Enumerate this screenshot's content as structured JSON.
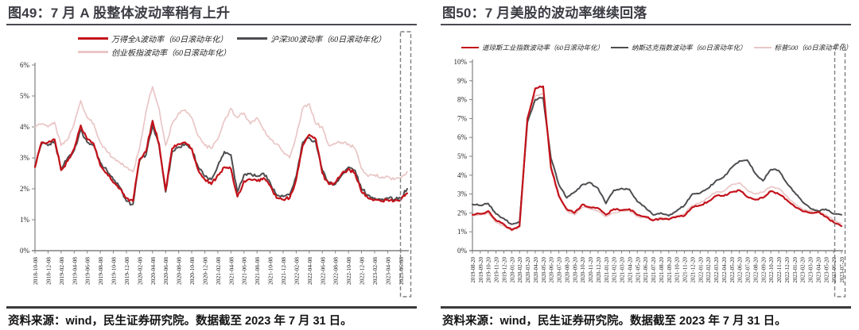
{
  "panels": [
    {
      "title": "图49：7 月 A 股整体波动率稍有上升",
      "source": "资料来源：wind，民生证券研究院。数据截至 2023 年 7 月 31 日。"
    },
    {
      "title": "图50：7 月美股的波动率继续回落",
      "source": "资料来源：wind，民生证券研究院。数据截至 2023 年 7 月 31 日。"
    }
  ],
  "colors": {
    "red": "#c3121a",
    "dark_gray": "#4e4e52",
    "pink": "#eac6c6",
    "axis": "#808080",
    "tick_text": "#1f1f1f",
    "title_text": "#3c3c44",
    "rule_dark": "#3a3a3a",
    "highlight_box": "#7f7f7f"
  },
  "chart_data": [
    {
      "type": "line",
      "title": "图49：7 月 A 股整体波动率稍有上升",
      "xlabel": "",
      "ylabel": "",
      "ylim": [
        0,
        6
      ],
      "grid": false,
      "legend_position": "top",
      "highlight_recent_period": true,
      "y_ticks": [
        "0%",
        "1%",
        "2%",
        "3%",
        "4%",
        "5%",
        "6%"
      ],
      "tick_step": 2,
      "x_tick_labels": [
        "2018-10-08",
        "2018-12-08",
        "2019-02-08",
        "2019-04-08",
        "2019-06-08",
        "2019-08-08",
        "2019-10-08",
        "2019-12-08",
        "2020-02-08",
        "2020-04-08",
        "2020-06-08",
        "2020-08-08",
        "2020-10-08",
        "2020-12-08",
        "2021-02-08",
        "2021-04-08",
        "2021-06-08",
        "2021-08-08",
        "2021-10-08",
        "2021-12-08",
        "2022-02-08",
        "2022-04-08",
        "2022-06-08",
        "2022-08-08",
        "2022-10-08",
        "2022-12-08",
        "2023-02-08",
        "2023-04-08",
        "2023-06-08"
      ],
      "series": [
        {
          "name": "万得全A波动率（60日滚动年化）",
          "color": "#c3121a",
          "values": [
            2.7,
            3.5,
            3.5,
            3.6,
            2.6,
            2.9,
            3.3,
            4.05,
            3.6,
            3.45,
            2.75,
            2.5,
            2.2,
            2.0,
            1.7,
            1.6,
            2.95,
            3.2,
            4.2,
            3.45,
            1.95,
            3.3,
            3.45,
            3.5,
            3.3,
            2.6,
            2.3,
            2.15,
            2.45,
            2.7,
            2.65,
            1.75,
            2.25,
            2.3,
            2.25,
            2.35,
            2.1,
            1.7,
            1.65,
            1.7,
            2.3,
            3.4,
            3.75,
            3.6,
            2.5,
            2.15,
            2.2,
            2.5,
            2.65,
            2.5,
            1.9,
            1.7,
            1.65,
            1.6,
            1.65,
            1.6,
            1.65,
            1.85
          ]
        },
        {
          "name": "沪深300波动率（60日滚动年化）",
          "color": "#4e4e52",
          "values": [
            2.75,
            3.45,
            3.4,
            3.55,
            2.65,
            3.0,
            3.25,
            3.9,
            3.5,
            3.4,
            2.85,
            2.6,
            2.3,
            2.05,
            1.6,
            1.5,
            2.9,
            3.1,
            4.05,
            3.4,
            1.9,
            3.2,
            3.35,
            3.45,
            3.3,
            2.7,
            2.4,
            2.3,
            2.75,
            3.2,
            3.1,
            1.9,
            2.45,
            2.5,
            2.4,
            2.5,
            2.2,
            1.8,
            1.75,
            1.8,
            2.4,
            3.5,
            3.65,
            3.5,
            2.6,
            2.2,
            2.15,
            2.45,
            2.7,
            2.6,
            2.0,
            1.8,
            1.7,
            1.65,
            1.7,
            1.65,
            1.7,
            2.0
          ]
        },
        {
          "name": "创业板指波动率（60日滚动年化）",
          "color": "#eac6c6",
          "values": [
            4.0,
            4.1,
            4.0,
            4.15,
            3.4,
            3.6,
            4.1,
            4.85,
            4.3,
            4.1,
            3.5,
            3.2,
            3.0,
            2.85,
            2.7,
            2.55,
            3.3,
            4.5,
            5.3,
            4.6,
            3.4,
            4.1,
            4.45,
            4.55,
            4.3,
            3.7,
            3.4,
            3.3,
            3.6,
            4.2,
            4.6,
            4.3,
            4.45,
            4.1,
            4.3,
            3.9,
            3.6,
            3.45,
            3.2,
            3.0,
            3.7,
            4.6,
            4.75,
            4.1,
            4.0,
            3.4,
            3.45,
            3.5,
            3.45,
            3.3,
            2.65,
            2.4,
            2.45,
            2.35,
            2.4,
            2.3,
            2.35,
            2.55
          ]
        }
      ]
    },
    {
      "type": "line",
      "title": "图50：7 月美股的波动率继续回落",
      "xlabel": "",
      "ylabel": "",
      "ylim": [
        0,
        10
      ],
      "grid": false,
      "legend_position": "top",
      "highlight_recent_period": true,
      "y_ticks": [
        "0%",
        "1%",
        "2%",
        "3%",
        "4%",
        "5%",
        "6%",
        "7%",
        "8%",
        "9%",
        "10%"
      ],
      "tick_step": 1,
      "x_tick_labels": [
        "2019-08-20",
        "2019-09-20",
        "2019-10-20",
        "2019-11-20",
        "2019-12-20",
        "2020-01-20",
        "2020-02-20",
        "2020-03-20",
        "2020-04-20",
        "2020-05-20",
        "2020-06-20",
        "2020-07-20",
        "2020-08-20",
        "2020-09-20",
        "2020-10-20",
        "2020-11-20",
        "2020-12-20",
        "2021-01-20",
        "2021-02-20",
        "2021-03-20",
        "2021-04-20",
        "2021-05-20",
        "2021-06-20",
        "2021-07-20",
        "2021-08-20",
        "2021-09-20",
        "2021-10-20",
        "2021-11-20",
        "2021-12-20",
        "2022-01-20",
        "2022-02-20",
        "2022-03-20",
        "2022-04-20",
        "2022-05-20",
        "2022-06-20",
        "2022-07-20",
        "2022-08-20",
        "2022-09-20",
        "2022-10-20",
        "2022-11-20",
        "2022-12-20",
        "2023-01-20",
        "2023-02-20",
        "2023-03-20",
        "2023-04-20",
        "2023-05-20",
        "2023-06-20",
        "2023-07-20"
      ],
      "series": [
        {
          "name": "道琼斯工业指数波动率（60日滚动年化）",
          "color": "#c3121a",
          "values": [
            1.9,
            1.95,
            2.1,
            1.6,
            1.4,
            1.1,
            1.3,
            7.0,
            8.6,
            8.7,
            4.4,
            2.9,
            2.2,
            2.0,
            2.45,
            2.3,
            2.25,
            1.9,
            2.2,
            2.15,
            2.2,
            1.9,
            1.8,
            1.6,
            1.7,
            1.65,
            1.8,
            1.85,
            2.3,
            2.4,
            2.6,
            2.9,
            2.9,
            3.1,
            3.2,
            2.85,
            2.7,
            2.8,
            3.15,
            3.0,
            2.7,
            2.35,
            2.1,
            2.0,
            2.05,
            1.8,
            1.5,
            1.3
          ]
        },
        {
          "name": "纳斯达克指数波动率（60日滚动年化）",
          "color": "#4e4e52",
          "values": [
            2.45,
            2.4,
            2.5,
            1.95,
            1.7,
            1.4,
            1.5,
            6.8,
            8.0,
            8.1,
            4.9,
            3.5,
            2.8,
            3.1,
            3.5,
            3.6,
            3.3,
            2.5,
            3.2,
            3.3,
            3.25,
            2.6,
            2.3,
            1.9,
            2.0,
            1.85,
            2.1,
            2.4,
            3.0,
            3.05,
            3.3,
            3.7,
            3.9,
            4.4,
            4.75,
            4.8,
            4.1,
            3.7,
            4.3,
            4.25,
            3.6,
            3.1,
            2.6,
            2.25,
            2.1,
            2.2,
            1.95,
            1.9
          ]
        },
        {
          "name": "标普500（60日滚动年化）",
          "color": "#eac6c6",
          "values": [
            1.85,
            1.9,
            2.0,
            1.5,
            1.3,
            1.05,
            1.25,
            7.0,
            8.2,
            8.3,
            4.5,
            3.0,
            2.1,
            1.9,
            2.3,
            2.2,
            2.1,
            1.8,
            2.0,
            2.1,
            2.1,
            1.8,
            1.75,
            1.65,
            1.75,
            1.7,
            1.85,
            1.95,
            2.4,
            2.55,
            2.8,
            3.1,
            3.15,
            3.5,
            3.6,
            3.2,
            3.0,
            3.1,
            3.4,
            3.3,
            2.9,
            2.5,
            2.2,
            2.1,
            2.1,
            1.9,
            1.6,
            1.45
          ]
        }
      ]
    }
  ]
}
